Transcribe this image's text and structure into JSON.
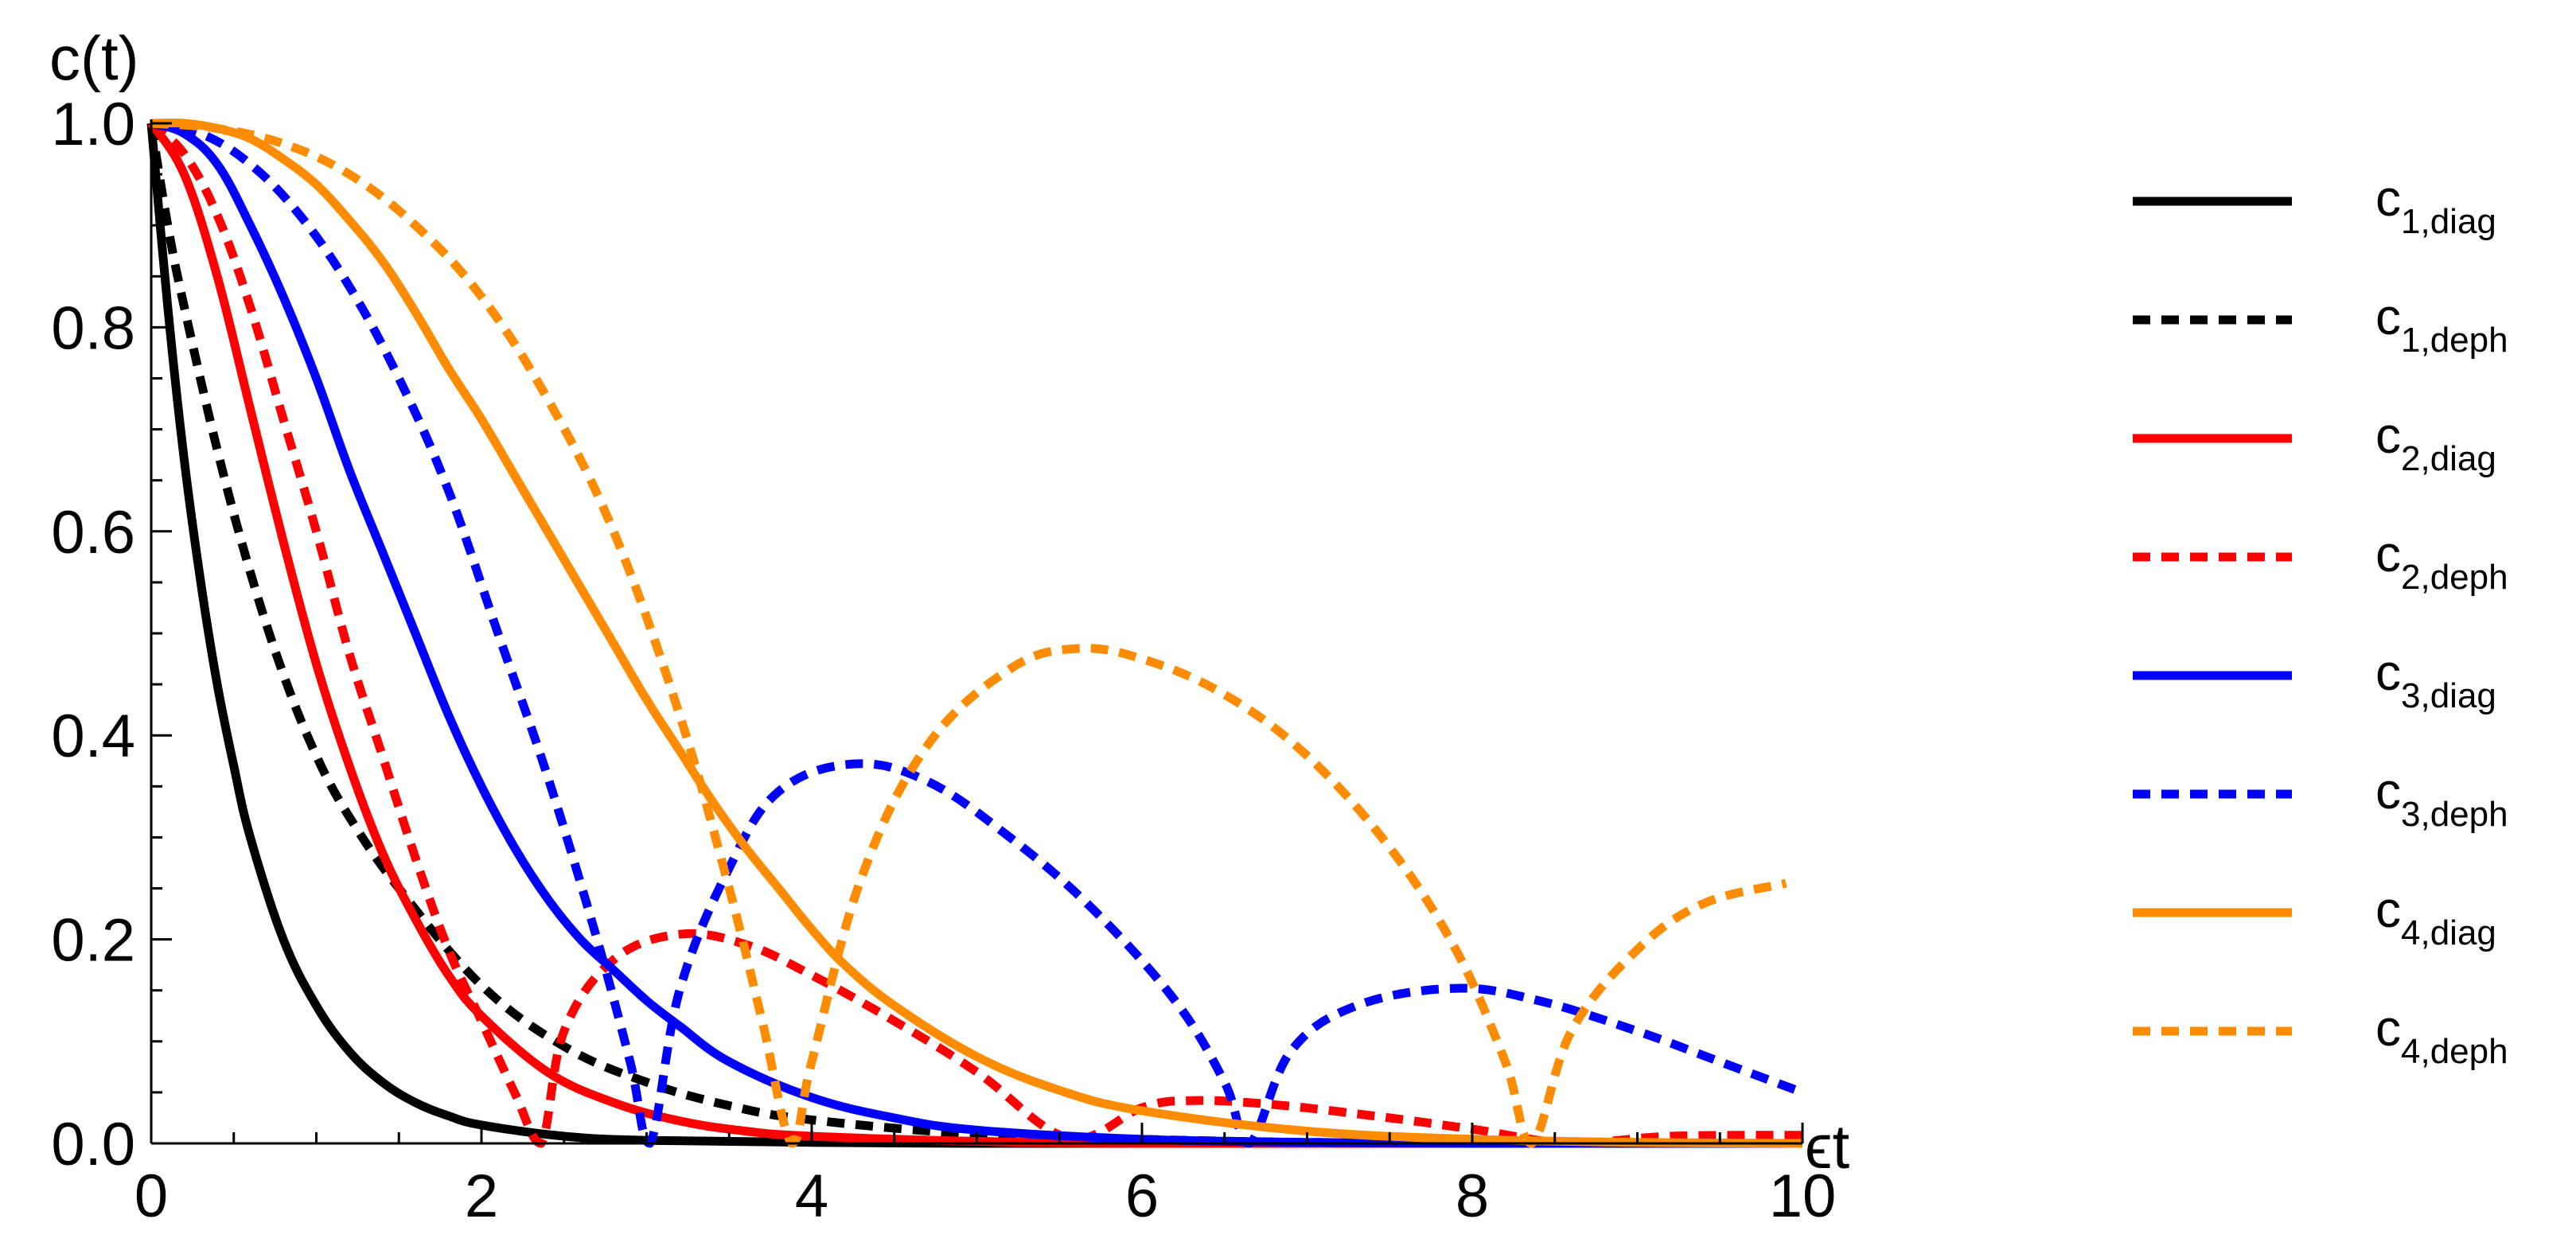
{
  "chart_data": {
    "type": "line",
    "ylabel": "c(t)",
    "xlabel": "ϵt",
    "xlim": [
      0,
      10
    ],
    "ylim": [
      0,
      1
    ],
    "x_ticks": [
      0,
      2,
      4,
      6,
      8,
      10
    ],
    "y_ticks": [
      0.0,
      0.2,
      0.4,
      0.6,
      0.8,
      1.0
    ],
    "x_tick_labels": [
      "0",
      "2",
      "4",
      "6",
      "8",
      "10"
    ],
    "y_tick_labels": [
      "0.0",
      "0.2",
      "0.4",
      "0.6",
      "0.8",
      "1.0"
    ],
    "grid": false,
    "legend_position": "right",
    "series": [
      {
        "main": "c",
        "sub": "1,diag",
        "color": "#000000",
        "dashed": false,
        "x": [
          0,
          0.1,
          0.2,
          0.3,
          0.4,
          0.5,
          0.6,
          0.8,
          1.0,
          1.2,
          1.4,
          1.6,
          1.8,
          2.0,
          2.5,
          3.0,
          4.0,
          5.0,
          6.0,
          8.0,
          10.0
        ],
        "y": [
          1.0,
          0.82,
          0.67,
          0.55,
          0.45,
          0.37,
          0.3,
          0.2,
          0.135,
          0.09,
          0.06,
          0.04,
          0.027,
          0.018,
          0.007,
          0.003,
          0.001,
          0,
          0,
          0,
          0
        ]
      },
      {
        "main": "c",
        "sub": "1,deph",
        "color": "#000000",
        "dashed": true,
        "x": [
          0,
          0.1,
          0.2,
          0.4,
          0.6,
          0.8,
          1.0,
          1.2,
          1.5,
          2.0,
          2.5,
          3.0,
          3.5,
          4.0,
          5.0,
          6.0,
          7.0,
          8.0,
          10.0
        ],
        "y": [
          1.0,
          0.9,
          0.82,
          0.68,
          0.56,
          0.46,
          0.38,
          0.32,
          0.25,
          0.155,
          0.095,
          0.06,
          0.037,
          0.023,
          0.009,
          0.004,
          0.001,
          0,
          0
        ]
      },
      {
        "main": "c",
        "sub": "2,diag",
        "color": "#ff0000",
        "dashed": false,
        "x": [
          0,
          0.2,
          0.4,
          0.6,
          0.8,
          1.0,
          1.2,
          1.4,
          1.6,
          1.8,
          2.0,
          2.4,
          2.8,
          3.2,
          3.6,
          4.0,
          5.0,
          6.0,
          8.0,
          10.0
        ],
        "y": [
          1.0,
          0.95,
          0.85,
          0.72,
          0.59,
          0.47,
          0.37,
          0.285,
          0.22,
          0.165,
          0.125,
          0.07,
          0.04,
          0.022,
          0.012,
          0.007,
          0.002,
          0,
          0,
          0
        ]
      },
      {
        "main": "c",
        "sub": "2,deph",
        "color": "#ff0000",
        "dashed": true,
        "x": [
          0,
          0.2,
          0.4,
          0.6,
          0.8,
          1.0,
          1.2,
          1.4,
          1.6,
          1.8,
          2.0,
          2.2,
          2.36,
          2.5,
          2.8,
          3.2,
          3.6,
          4.0,
          4.5,
          5.0,
          5.56,
          6.0,
          6.3,
          6.8,
          7.5,
          8.0,
          8.6,
          9.2,
          10.0
        ],
        "y": [
          1.0,
          0.97,
          0.91,
          0.82,
          0.71,
          0.6,
          0.48,
          0.38,
          0.28,
          0.19,
          0.12,
          0.05,
          0.0,
          0.11,
          0.18,
          0.205,
          0.195,
          0.165,
          0.12,
          0.07,
          0.005,
          0.035,
          0.042,
          0.038,
          0.025,
          0.014,
          0.0,
          0.007,
          0.008
        ]
      },
      {
        "main": "c",
        "sub": "3,diag",
        "color": "#0000ff",
        "dashed": false,
        "x": [
          0,
          0.2,
          0.4,
          0.6,
          0.8,
          1.0,
          1.2,
          1.4,
          1.6,
          1.8,
          2.0,
          2.2,
          2.4,
          2.6,
          2.8,
          3.0,
          3.2,
          3.5,
          4.0,
          4.5,
          5.0,
          6.0,
          7.0,
          8.0,
          10.0
        ],
        "y": [
          1.0,
          0.99,
          0.96,
          0.9,
          0.83,
          0.75,
          0.66,
          0.58,
          0.5,
          0.42,
          0.35,
          0.29,
          0.24,
          0.2,
          0.17,
          0.14,
          0.115,
          0.08,
          0.045,
          0.025,
          0.013,
          0.004,
          0.001,
          0,
          0
        ]
      },
      {
        "main": "c",
        "sub": "3,deph",
        "color": "#0000ff",
        "dashed": true,
        "x": [
          0,
          0.3,
          0.6,
          0.9,
          1.2,
          1.5,
          1.8,
          2.1,
          2.4,
          2.7,
          2.9,
          3.02,
          3.2,
          3.5,
          3.8,
          4.25,
          4.7,
          5.2,
          5.7,
          6.2,
          6.5,
          6.65,
          6.9,
          7.3,
          7.9,
          8.4,
          9.0,
          9.5,
          10.0
        ],
        "y": [
          1.0,
          0.99,
          0.96,
          0.91,
          0.84,
          0.75,
          0.64,
          0.5,
          0.36,
          0.2,
          0.08,
          0.0,
          0.15,
          0.27,
          0.345,
          0.372,
          0.355,
          0.3,
          0.23,
          0.14,
          0.06,
          0.0,
          0.09,
          0.135,
          0.152,
          0.14,
          0.11,
          0.08,
          0.05
        ]
      },
      {
        "main": "c",
        "sub": "4,diag",
        "color": "#ff8c00",
        "dashed": false,
        "x": [
          0,
          0.2,
          0.4,
          0.6,
          0.8,
          1.0,
          1.2,
          1.4,
          1.6,
          1.8,
          2.0,
          2.2,
          2.4,
          2.6,
          2.8,
          3.0,
          3.2,
          3.4,
          3.6,
          3.8,
          4.0,
          4.2,
          4.5,
          5.0,
          5.5,
          6.0,
          7.0,
          8.0,
          9.0,
          10.0
        ],
        "y": [
          1.0,
          1.0,
          0.995,
          0.985,
          0.965,
          0.94,
          0.905,
          0.865,
          0.815,
          0.76,
          0.71,
          0.655,
          0.6,
          0.545,
          0.49,
          0.435,
          0.385,
          0.335,
          0.29,
          0.25,
          0.21,
          0.175,
          0.135,
          0.085,
          0.052,
          0.032,
          0.012,
          0.004,
          0.001,
          0
        ]
      },
      {
        "main": "c",
        "sub": "4,deph",
        "color": "#ff8c00",
        "dashed": true,
        "x": [
          0,
          0.4,
          0.8,
          1.2,
          1.6,
          2.0,
          2.4,
          2.8,
          3.2,
          3.5,
          3.7,
          3.88,
          4.0,
          4.3,
          4.7,
          5.2,
          5.6,
          6.0,
          6.5,
          7.0,
          7.5,
          7.9,
          8.2,
          8.36,
          8.6,
          9.0,
          9.4,
          9.9
        ],
        "y": [
          1.0,
          0.995,
          0.98,
          0.95,
          0.9,
          0.83,
          0.73,
          0.6,
          0.42,
          0.25,
          0.12,
          0.0,
          0.08,
          0.26,
          0.39,
          0.465,
          0.485,
          0.475,
          0.44,
          0.38,
          0.29,
          0.19,
          0.08,
          0.0,
          0.11,
          0.19,
          0.235,
          0.255
        ]
      }
    ]
  }
}
